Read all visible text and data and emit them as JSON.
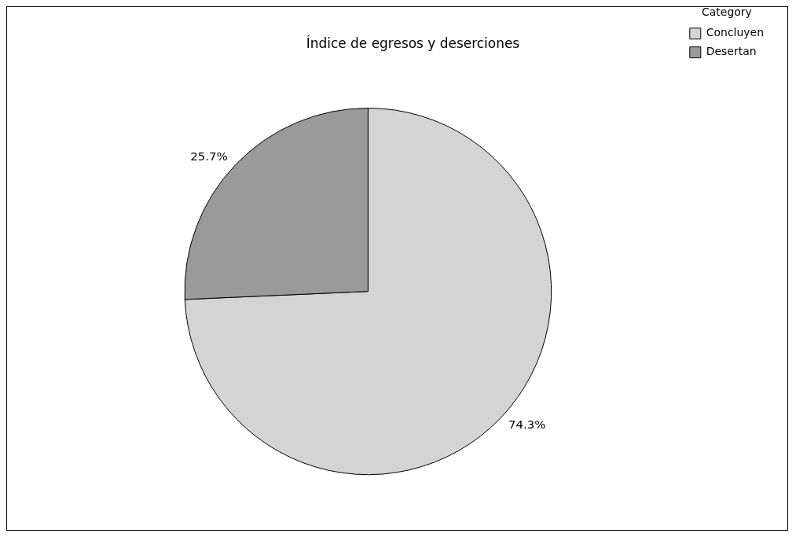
{
  "chart_data": {
    "type": "pie",
    "title": "Índice de egresos y deserciones",
    "legend_title": "Category",
    "legend": "top right",
    "categories": [
      "Concluyen",
      "Desertan"
    ],
    "values": [
      74.3,
      25.7
    ],
    "colors": [
      "#d4d4d4",
      "#9a9a9a"
    ],
    "value_labels": [
      "74.3%",
      "25.7%"
    ]
  }
}
